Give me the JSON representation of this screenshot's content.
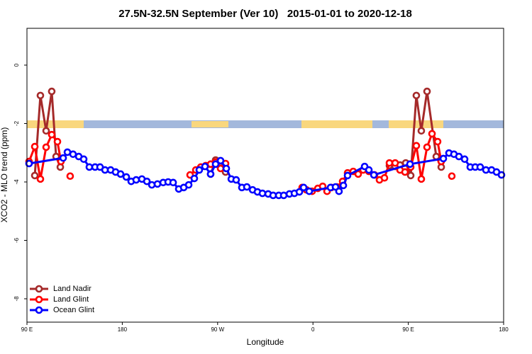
{
  "chart_data": {
    "type": "line",
    "title": "27.5N-32.5N September (Ver 10)   2015-01-01 to 2020-12-18",
    "x_label": "Longitude",
    "y_label": "XCO2 - MLO trend (ppm)",
    "xlim": [
      90,
      540
    ],
    "xticks": [
      {
        "value": 90,
        "label": "90 E"
      },
      {
        "value": 180,
        "label": "180"
      },
      {
        "value": 270,
        "label": "90 W"
      },
      {
        "value": 360,
        "label": "0"
      },
      {
        "value": 450,
        "label": "90 E"
      },
      {
        "value": 540,
        "label": "180"
      }
    ],
    "ylim": [
      -8.8,
      1.26
    ],
    "yticks": [
      0,
      -2,
      -4,
      -6,
      -8
    ],
    "legend_position": "bottom-left",
    "series": [
      {
        "name": "Land Nadir",
        "color": "#a52a2a",
        "x": [
          97.4,
          102.7,
          108.1,
          113.4,
          117.5,
          121.5,
          null,
          263.4,
          268.1,
          272.8,
          277.5,
          null,
          432.2,
          437.6,
          442.2,
          447.6,
          452.3,
          457.6,
          462.3,
          467.7,
          476.4,
          481.1
        ],
        "values": [
          -3.78,
          -1.04,
          -2.25,
          -0.9,
          -3.13,
          -3.49,
          null,
          -3.73,
          -3.25,
          -3.47,
          -3.66,
          null,
          -3.44,
          -3.47,
          -3.42,
          -3.35,
          -3.78,
          -1.04,
          -2.25,
          -0.9,
          -3.13,
          -3.49
        ]
      },
      {
        "name": "Land Glint",
        "color": "#ff0000",
        "x": [
          92.0,
          97.4,
          102.7,
          108.1,
          113.4,
          118.8,
          122.1,
          null,
          130.8,
          null,
          244.0,
          249.4,
          254.1,
          258.8,
          263.4,
          268.1,
          272.8,
          277.5,
          null,
          349.8,
          353.8,
          359.2,
          364.6,
          369.2,
          373.3,
          377.3,
          382.6,
          388.0,
          392.7,
          398.0,
          402.7,
          407.4,
          412.8,
          418.1,
          422.8,
          427.5,
          432.2,
          437.6,
          442.2,
          446.9,
          452.3,
          457.6,
          462.3,
          467.7,
          472.4,
          477.7,
          481.1,
          null,
          491.1
        ],
        "values": [
          -3.3,
          -2.79,
          -3.9,
          -2.81,
          -2.38,
          -2.62,
          -3.3,
          null,
          -3.8,
          null,
          -3.76,
          -3.59,
          -3.49,
          -3.44,
          -3.39,
          -3.32,
          -3.54,
          -3.37,
          null,
          -4.19,
          -4.27,
          -4.32,
          -4.22,
          -4.15,
          -4.32,
          -4.19,
          -4.17,
          -3.98,
          -3.69,
          -3.64,
          -3.73,
          -3.59,
          -3.64,
          -3.76,
          -3.93,
          -3.86,
          -3.35,
          -3.35,
          -3.59,
          -3.66,
          -3.49,
          -2.76,
          -3.9,
          -2.81,
          -2.35,
          -2.62,
          -3.3,
          null,
          -3.8
        ]
      },
      {
        "name": "Ocean Glint",
        "color": "#0000ff",
        "x": [
          92.0,
          124.2,
          128.2,
          133.5,
          138.9,
          143.6,
          148.9,
          154.3,
          159.0,
          163.7,
          169.0,
          173.7,
          178.4,
          183.8,
          188.4,
          193.1,
          198.5,
          203.2,
          207.9,
          213.2,
          218.6,
          223.3,
          228.0,
          233.3,
          238.0,
          242.7,
          248.0,
          252.7,
          258.1,
          263.4,
          268.1,
          272.8,
          278.2,
          282.9,
          287.5,
          292.9,
          297.6,
          303.0,
          307.6,
          312.3,
          317.7,
          322.4,
          327.7,
          332.4,
          337.8,
          342.5,
          347.2,
          351.2,
          356.5,
          376.6,
          381.3,
          384.6,
          388.7,
          392.7,
          408.8,
          412.8,
          417.5,
          451.6,
          483.1,
          488.4,
          493.1,
          497.8,
          503.2,
          508.5,
          513.2,
          517.9,
          523.3,
          528.6,
          533.3,
          538.0
        ],
        "values": [
          -3.37,
          -3.18,
          -2.98,
          -3.05,
          -3.13,
          -3.22,
          -3.49,
          -3.49,
          -3.49,
          -3.59,
          -3.59,
          -3.66,
          -3.73,
          -3.83,
          -3.98,
          -3.93,
          -3.9,
          -3.98,
          -4.1,
          -4.07,
          -4.02,
          -4.0,
          -4.02,
          -4.24,
          -4.19,
          -4.1,
          -3.88,
          -3.59,
          -3.47,
          -3.73,
          -3.39,
          -3.27,
          -3.54,
          -3.9,
          -3.93,
          -4.19,
          -4.17,
          -4.27,
          -4.34,
          -4.39,
          -4.41,
          -4.46,
          -4.46,
          -4.46,
          -4.41,
          -4.39,
          -4.34,
          -4.19,
          -4.32,
          -4.19,
          -4.17,
          -4.32,
          -4.12,
          -3.78,
          -3.47,
          -3.59,
          -3.76,
          -3.39,
          -3.2,
          -3.01,
          -3.05,
          -3.13,
          -3.22,
          -3.49,
          -3.49,
          -3.49,
          -3.59,
          -3.59,
          -3.66,
          -3.76
        ]
      }
    ]
  }
}
